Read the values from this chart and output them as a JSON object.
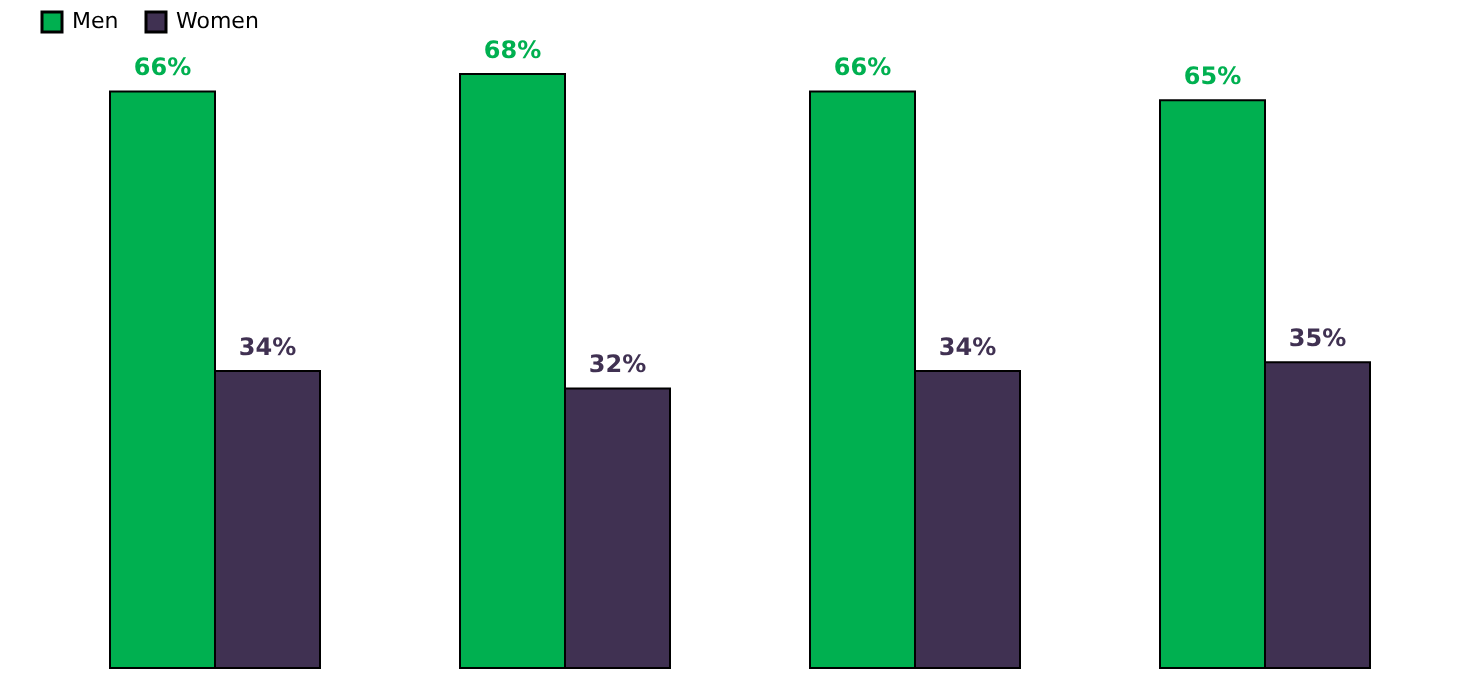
{
  "chart_data": {
    "type": "bar",
    "categories": [
      null,
      null,
      null,
      null
    ],
    "series": [
      {
        "name": "Men",
        "color": "#00b050",
        "values": [
          66,
          68,
          66,
          65
        ],
        "value_labels": [
          "66%",
          "68%",
          "66%",
          "65%"
        ]
      },
      {
        "name": "Women",
        "color": "#403152",
        "values": [
          34,
          32,
          34,
          35
        ],
        "value_labels": [
          "34%",
          "32%",
          "34%",
          "35%"
        ]
      }
    ],
    "legend": "top",
    "grid": false
  }
}
